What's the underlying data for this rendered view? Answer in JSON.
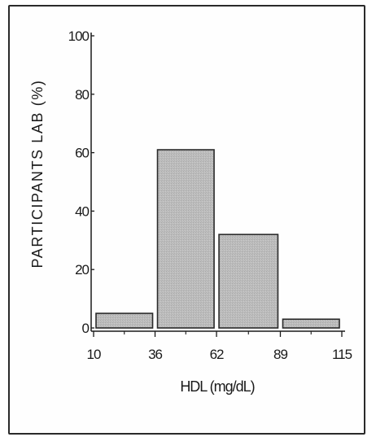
{
  "chart_data": {
    "type": "bar",
    "x_tick_labels": [
      "10",
      "36",
      "62",
      "89",
      "115"
    ],
    "bin_edges": [
      10,
      36,
      62,
      89,
      115
    ],
    "bins": [
      {
        "from": 10,
        "to": 36,
        "value": 5
      },
      {
        "from": 36,
        "to": 62,
        "value": 61
      },
      {
        "from": 62,
        "to": 89,
        "value": 32
      },
      {
        "from": 89,
        "to": 115,
        "value": 3
      }
    ],
    "xlabel": "HDL (mg/dL)",
    "ylabel": "PARTICIPANTS LAB (%)",
    "ylim": [
      0,
      100
    ],
    "y_ticks": [
      "0",
      "20",
      "40",
      "60",
      "80",
      "100"
    ],
    "bar_color": "#b9b9b9",
    "bar_edge_color": "#2a2a2a",
    "grid": false
  }
}
